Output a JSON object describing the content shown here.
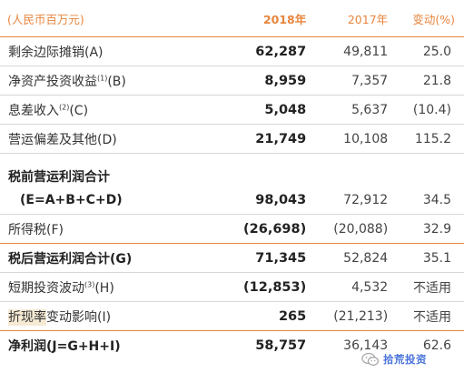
{
  "header": {
    "label": "(人民币百万元)",
    "y2018": "2018年",
    "y2017": "2017年",
    "change": "变动(%)"
  },
  "rows": [
    {
      "label": "剩余边际摊销(A)",
      "sup": "",
      "label_tail": "",
      "v2018": "62,287",
      "v2017": "49,811",
      "change": "25.0"
    },
    {
      "label": "净资产投资收益",
      "sup": "(1)",
      "label_tail": "(B)",
      "v2018": "8,959",
      "v2017": "7,357",
      "change": "21.8"
    },
    {
      "label": "息差收入",
      "sup": "(2)",
      "label_tail": "(C)",
      "v2018": "5,048",
      "v2017": "5,637",
      "change": "(10.4)"
    },
    {
      "label": "营运偏差及其他(D)",
      "sup": "",
      "label_tail": "",
      "v2018": "21,749",
      "v2017": "10,108",
      "change": "115.2"
    }
  ],
  "pretax": {
    "title": "税前营运利润合计",
    "formula": "(E=A+B+C+D)",
    "v2018": "98,043",
    "v2017": "72,912",
    "change": "34.5"
  },
  "tax": {
    "label": "所得税(F)",
    "v2018": "(26,698)",
    "v2017": "(20,088)",
    "change": "32.9"
  },
  "aftertax": {
    "label": "税后营运利润合计(G)",
    "v2018": "71,345",
    "v2017": "52,824",
    "change": "35.1"
  },
  "shortterm": {
    "label": "短期投资波动",
    "sup": "(3)",
    "label_tail": "(H)",
    "v2018": "(12,853)",
    "v2017": "4,532",
    "change": "不适用"
  },
  "discount": {
    "label_highlight": "折现率",
    "label_rest": "变动影响(I)",
    "v2018": "265",
    "v2017": "(21,213)",
    "change": "不适用"
  },
  "netprofit": {
    "label": "净利润(J=G+H+I)",
    "v2018": "58,757",
    "v2017": "36,143",
    "change": "62.6"
  },
  "watermark": {
    "icon": "wechat-icon",
    "text": "拾荒投资"
  },
  "colors": {
    "accent": "#e8853d",
    "row_border": "#d7d7d7",
    "highlight": "#f6ead5",
    "watermark": "#2a5bd7"
  }
}
